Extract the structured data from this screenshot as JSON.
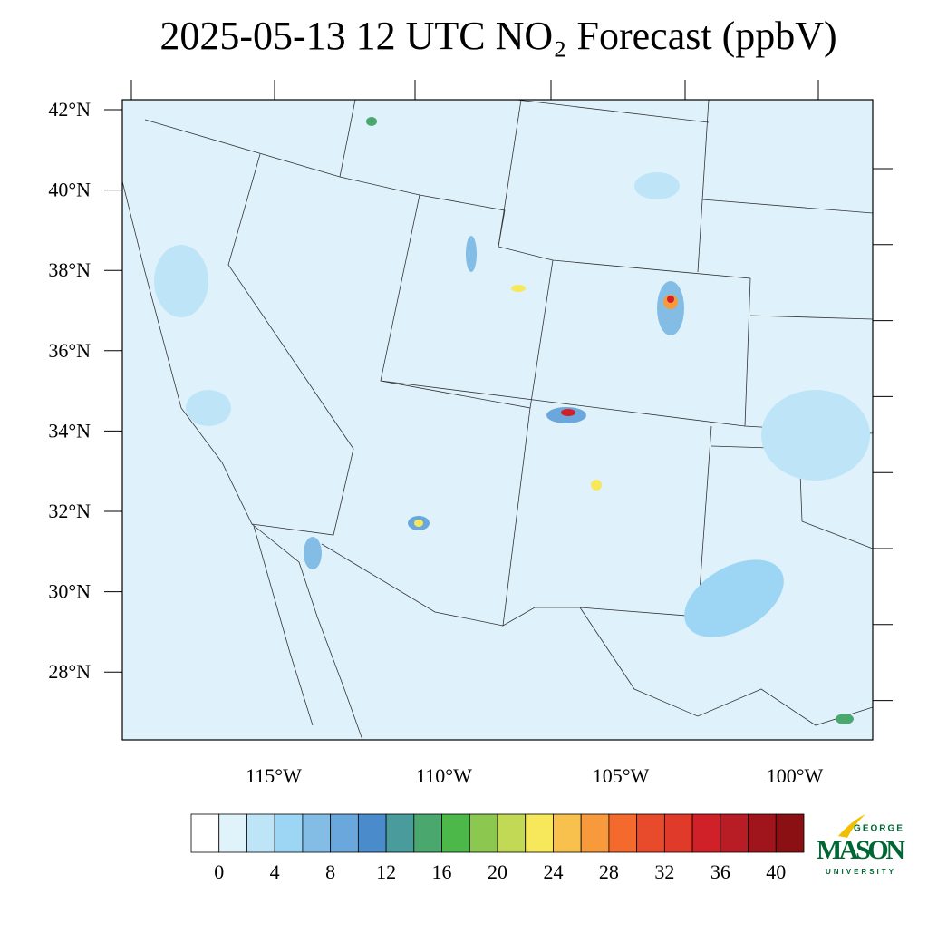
{
  "title": "2025-05-13 12 UTC NO₂ Forecast (ppbV)",
  "map": {
    "lat_labels": [
      "42°N",
      "40°N",
      "38°N",
      "36°N",
      "34°N",
      "32°N",
      "30°N",
      "28°N"
    ],
    "lon_labels": [
      "115°W",
      "110°W",
      "105°W",
      "100°W"
    ]
  },
  "colorbar": {
    "colors": [
      "#ffffff",
      "#e0f3fb",
      "#bde5f7",
      "#9dd6f4",
      "#83bde6",
      "#6aa7dc",
      "#4a8ccb",
      "#4a9c9c",
      "#4aa86e",
      "#4cb84a",
      "#8cc850",
      "#c2d956",
      "#f6e85a",
      "#f8c04c",
      "#f89a3c",
      "#f46a2c",
      "#e84a2c",
      "#e03a2a",
      "#d02028",
      "#b81c24",
      "#a0141c",
      "#8a1014"
    ],
    "labels": [
      0,
      4,
      8,
      12,
      16,
      20,
      24,
      28,
      32,
      36,
      40
    ]
  },
  "logo": {
    "top": "GEORGE",
    "main": "MASON",
    "bottom": "UNIVERSITY"
  }
}
